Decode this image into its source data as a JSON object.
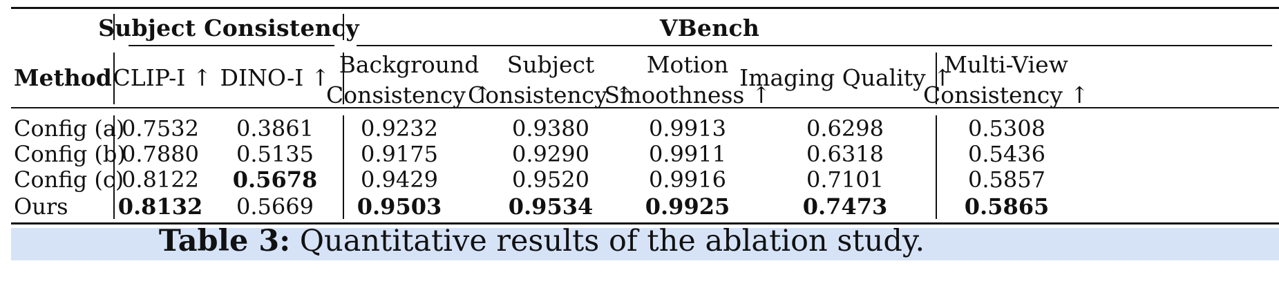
{
  "table": {
    "groups": {
      "subject": "Subject Consistency",
      "vbench": "VBench"
    },
    "headers": {
      "method": "Method",
      "clip": "CLIP-I ↑",
      "dino": "DINO-I ↑",
      "bg_1": "Background",
      "bg_2": "Consistency ↑",
      "sc_1": "Subject",
      "sc_2": "Consistency ↑",
      "ms_1": "Motion",
      "ms_2": "Smoothness ↑",
      "iq": "Imaging Quality ↑",
      "mv_1": "Multi-View",
      "mv_2": "Consistency ↑"
    },
    "rows": [
      {
        "method": "Config (a)",
        "values": [
          "0.7532",
          "0.3861",
          "0.9232",
          "0.9380",
          "0.9913",
          "0.6298",
          "0.5308"
        ]
      },
      {
        "method": "Config (b)",
        "values": [
          "0.7880",
          "0.5135",
          "0.9175",
          "0.9290",
          "0.9911",
          "0.6318",
          "0.5436"
        ]
      },
      {
        "method": "Config (c)",
        "values": [
          "0.8122",
          "0.5678",
          "0.9429",
          "0.9520",
          "0.9916",
          "0.7101",
          "0.5857"
        ]
      },
      {
        "method": "Ours",
        "values": [
          "0.8132",
          "0.5669",
          "0.9503",
          "0.9534",
          "0.9925",
          "0.7473",
          "0.5865"
        ]
      }
    ],
    "bold_cells": [
      [
        2,
        1
      ],
      [
        3,
        0
      ],
      [
        3,
        2
      ],
      [
        3,
        3
      ],
      [
        3,
        4
      ],
      [
        3,
        5
      ],
      [
        3,
        6
      ]
    ],
    "highlight_row": 3,
    "highlight_color": "#d6e3f7"
  },
  "caption": {
    "label": "Table 3:",
    "text": "Quantitative results of the ablation study."
  }
}
